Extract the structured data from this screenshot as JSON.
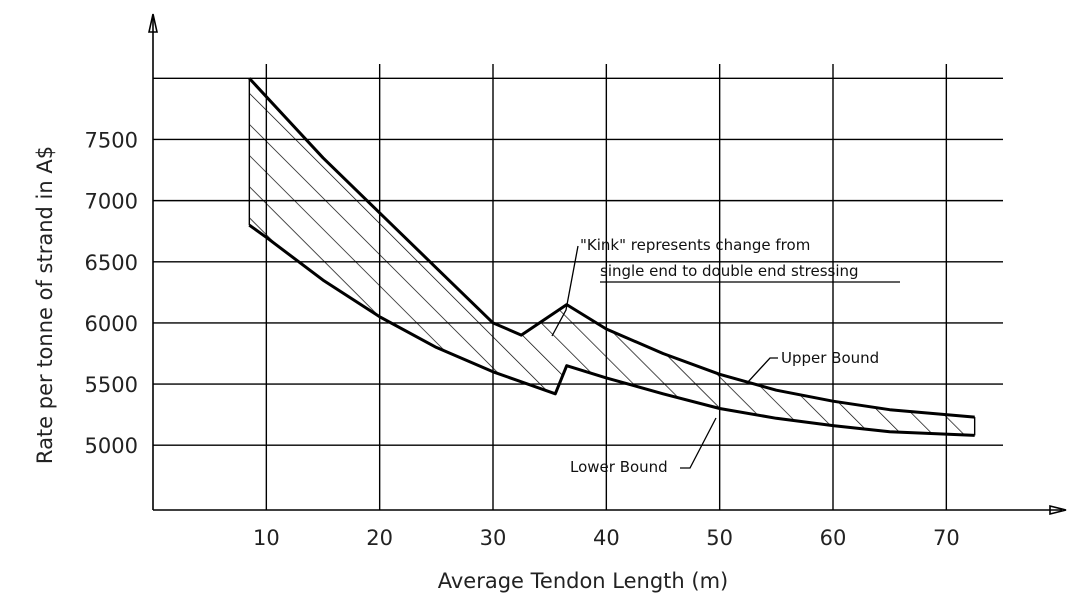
{
  "chart_data": {
    "type": "area",
    "title": "",
    "xlabel": "Average Tendon Length (m)",
    "ylabel": "Rate per tonne of strand in A$",
    "x_ticks": [
      10,
      20,
      30,
      40,
      50,
      60,
      70
    ],
    "y_ticks": [
      5000,
      5500,
      6000,
      6500,
      7000,
      7500
    ],
    "xlim": [
      0,
      75
    ],
    "ylim": [
      4470,
      8150
    ],
    "grid": true,
    "series": [
      {
        "name": "Upper Bound",
        "x": [
          8.5,
          10,
          15,
          20,
          25,
          30,
          32.5,
          36.5,
          40,
          45,
          50,
          55,
          60,
          65,
          72.5
        ],
        "y": [
          8000,
          7850,
          7350,
          6900,
          6450,
          6000,
          5900,
          6150,
          5950,
          5750,
          5580,
          5450,
          5360,
          5290,
          5230
        ]
      },
      {
        "name": "Lower Bound",
        "x": [
          8.5,
          10,
          15,
          20,
          25,
          30,
          35.5,
          36.5,
          40,
          45,
          50,
          55,
          60,
          65,
          72.5
        ],
        "y": [
          6800,
          6700,
          6350,
          6050,
          5800,
          5600,
          5420,
          5650,
          5550,
          5420,
          5300,
          5220,
          5160,
          5110,
          5080
        ]
      }
    ],
    "annotations": [
      {
        "lines": [
          "\"Kink\" represents change from",
          "single end to double end stressing"
        ]
      },
      {
        "text": "Upper Bound"
      },
      {
        "text": "Lower Bound"
      }
    ]
  }
}
